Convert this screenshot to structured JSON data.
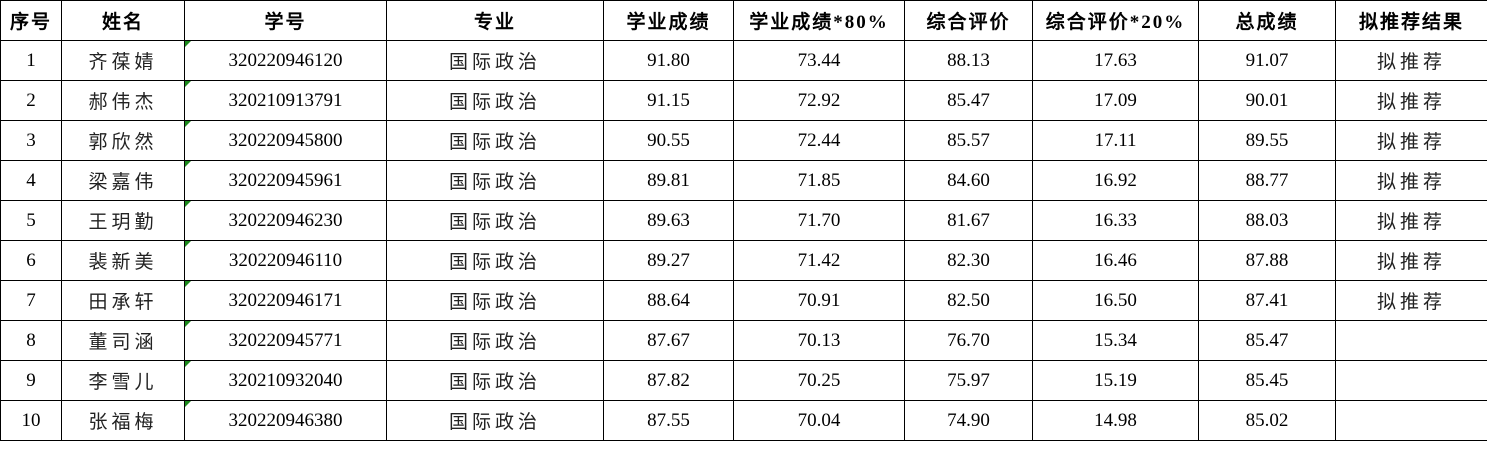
{
  "table": {
    "headers": [
      "序号",
      "姓名",
      "学号",
      "专业",
      "学业成绩",
      "学业成绩*80%",
      "综合评价",
      "综合评价*20%",
      "总成绩",
      "拟推荐结果"
    ],
    "rows": [
      [
        "1",
        "齐葆婧",
        "320220946120",
        "国际政治",
        "91.80",
        "73.44",
        "88.13",
        "17.63",
        "91.07",
        "拟推荐"
      ],
      [
        "2",
        "郝伟杰",
        "320210913791",
        "国际政治",
        "91.15",
        "72.92",
        "85.47",
        "17.09",
        "90.01",
        "拟推荐"
      ],
      [
        "3",
        "郭欣然",
        "320220945800",
        "国际政治",
        "90.55",
        "72.44",
        "85.57",
        "17.11",
        "89.55",
        "拟推荐"
      ],
      [
        "4",
        "梁嘉伟",
        "320220945961",
        "国际政治",
        "89.81",
        "71.85",
        "84.60",
        "16.92",
        "88.77",
        "拟推荐"
      ],
      [
        "5",
        "王玥勤",
        "320220946230",
        "国际政治",
        "89.63",
        "71.70",
        "81.67",
        "16.33",
        "88.03",
        "拟推荐"
      ],
      [
        "6",
        "裴新美",
        "320220946110",
        "国际政治",
        "89.27",
        "71.42",
        "82.30",
        "16.46",
        "87.88",
        "拟推荐"
      ],
      [
        "7",
        "田承轩",
        "320220946171",
        "国际政治",
        "88.64",
        "70.91",
        "82.50",
        "16.50",
        "87.41",
        "拟推荐"
      ],
      [
        "8",
        "董司涵",
        "320220945771",
        "国际政治",
        "87.67",
        "70.13",
        "76.70",
        "15.34",
        "85.47",
        ""
      ],
      [
        "9",
        "李雪儿",
        "320210932040",
        "国际政治",
        "87.82",
        "70.25",
        "75.97",
        "15.19",
        "85.45",
        ""
      ],
      [
        "10",
        "张福梅",
        "320220946380",
        "国际政治",
        "87.55",
        "70.04",
        "74.90",
        "14.98",
        "85.02",
        ""
      ]
    ]
  },
  "colors": {
    "text_marker_triangle": "#1a8a1a",
    "border": "#000000"
  }
}
